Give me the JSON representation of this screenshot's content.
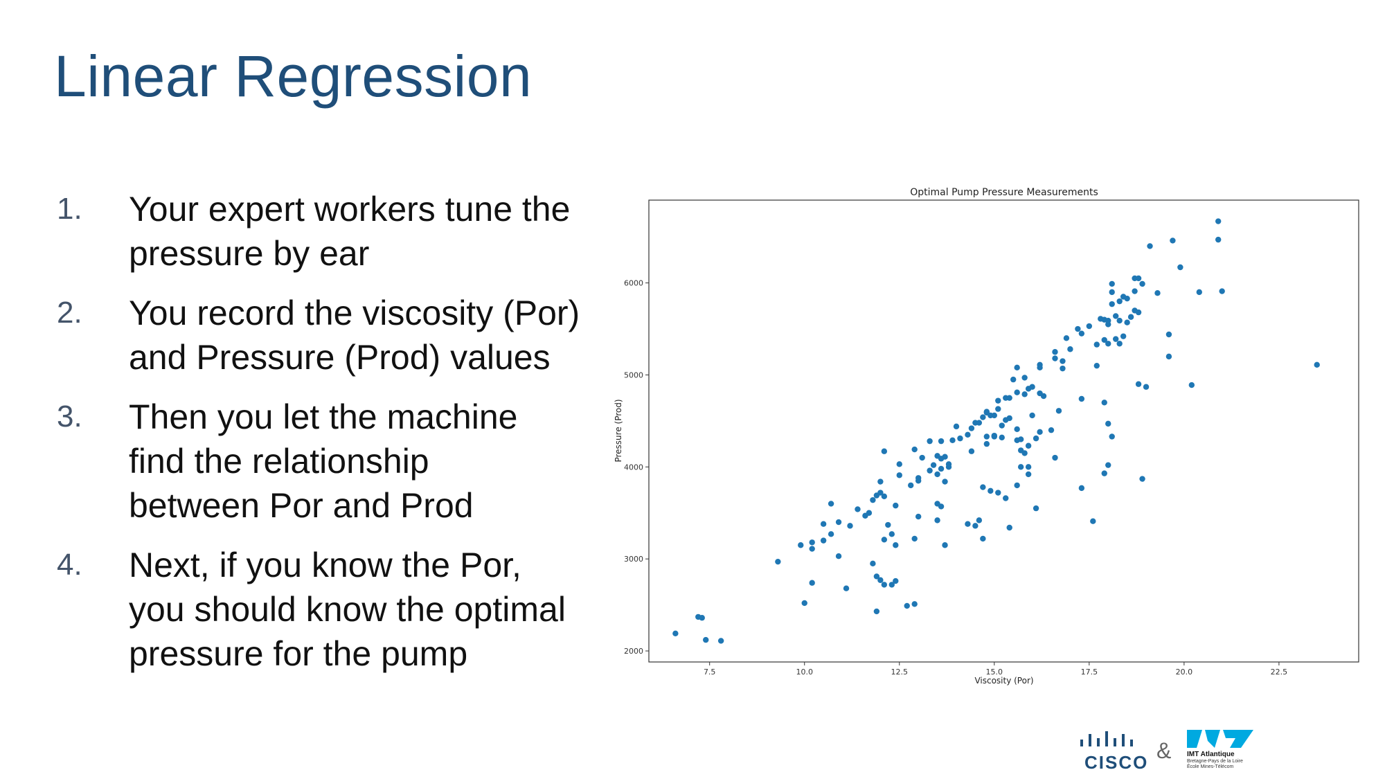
{
  "slide": {
    "title": "Linear Regression",
    "steps": [
      {
        "num": "1.",
        "lines": [
          "Your expert workers tune the",
          "pressure by ear"
        ]
      },
      {
        "num": "2.",
        "lines": [
          "You record the viscosity (Por)",
          "and Pressure (Prod) values"
        ]
      },
      {
        "num": "3.",
        "lines": [
          "Then you let the machine",
          "find the relationship",
          "between Por and Prod"
        ]
      },
      {
        "num": "4.",
        "lines": [
          "Next, if you know the Por,",
          "you should know the optimal",
          "pressure for the pump"
        ]
      }
    ]
  },
  "logos": {
    "cisco": "CISCO",
    "amp": "&",
    "imt_name": "IMT Atlantique",
    "imt_sub": [
      "Bretagne-Pays de la Loire",
      "École Mines-Télécom"
    ],
    "cisco_color": "#1f4e79",
    "imt_color": "#00a9e0"
  },
  "chart_data": {
    "type": "scatter",
    "title": "Optimal Pump Pressure Measurements",
    "xlabel": "Viscosity (Por)",
    "ylabel": "Pressure (Prod)",
    "xlim": [
      5.9,
      24.6
    ],
    "ylim": [
      1880,
      6900
    ],
    "xticks": [
      7.5,
      10.0,
      12.5,
      15.0,
      17.5,
      20.0,
      22.5
    ],
    "yticks": [
      2000,
      3000,
      4000,
      5000,
      6000
    ],
    "point_color": "#1f77b4",
    "grid": false,
    "points": [
      [
        6.6,
        2190
      ],
      [
        7.2,
        2370
      ],
      [
        7.3,
        2360
      ],
      [
        7.4,
        2120
      ],
      [
        7.8,
        2110
      ],
      [
        9.3,
        2970
      ],
      [
        9.9,
        3150
      ],
      [
        10.0,
        2520
      ],
      [
        10.2,
        3180
      ],
      [
        10.2,
        3110
      ],
      [
        10.2,
        2740
      ],
      [
        10.5,
        3200
      ],
      [
        10.5,
        3380
      ],
      [
        10.7,
        3600
      ],
      [
        10.7,
        3270
      ],
      [
        10.9,
        3400
      ],
      [
        10.9,
        3030
      ],
      [
        11.1,
        2680
      ],
      [
        11.2,
        3360
      ],
      [
        11.4,
        3540
      ],
      [
        11.6,
        3470
      ],
      [
        11.7,
        3500
      ],
      [
        11.8,
        3640
      ],
      [
        11.8,
        2950
      ],
      [
        11.9,
        2810
      ],
      [
        11.9,
        2430
      ],
      [
        11.9,
        3690
      ],
      [
        12.0,
        2770
      ],
      [
        12.0,
        3840
      ],
      [
        12.0,
        3720
      ],
      [
        12.1,
        3680
      ],
      [
        12.1,
        3210
      ],
      [
        12.1,
        2720
      ],
      [
        12.1,
        4170
      ],
      [
        12.2,
        3370
      ],
      [
        12.3,
        3270
      ],
      [
        12.3,
        2720
      ],
      [
        12.4,
        3580
      ],
      [
        12.4,
        3150
      ],
      [
        12.4,
        2760
      ],
      [
        12.5,
        3910
      ],
      [
        12.5,
        4030
      ],
      [
        12.7,
        2490
      ],
      [
        12.8,
        3800
      ],
      [
        12.9,
        3220
      ],
      [
        12.9,
        2510
      ],
      [
        12.9,
        4190
      ],
      [
        13.0,
        3850
      ],
      [
        13.0,
        3880
      ],
      [
        13.0,
        3460
      ],
      [
        13.1,
        4100
      ],
      [
        13.3,
        3960
      ],
      [
        13.3,
        4280
      ],
      [
        13.4,
        4020
      ],
      [
        13.5,
        4120
      ],
      [
        13.5,
        3920
      ],
      [
        13.5,
        3600
      ],
      [
        13.5,
        3420
      ],
      [
        13.6,
        4280
      ],
      [
        13.6,
        4090
      ],
      [
        13.6,
        3980
      ],
      [
        13.6,
        3570
      ],
      [
        13.7,
        4110
      ],
      [
        13.7,
        3840
      ],
      [
        13.7,
        3150
      ],
      [
        13.8,
        4030
      ],
      [
        13.8,
        4000
      ],
      [
        13.9,
        4290
      ],
      [
        14.0,
        4440
      ],
      [
        14.1,
        4310
      ],
      [
        14.3,
        4350
      ],
      [
        14.3,
        3380
      ],
      [
        14.4,
        4420
      ],
      [
        14.4,
        4170
      ],
      [
        14.5,
        4480
      ],
      [
        14.5,
        3360
      ],
      [
        14.6,
        4480
      ],
      [
        14.6,
        3420
      ],
      [
        14.7,
        4540
      ],
      [
        14.7,
        3780
      ],
      [
        14.7,
        3220
      ],
      [
        14.8,
        4600
      ],
      [
        14.8,
        4330
      ],
      [
        14.8,
        4590
      ],
      [
        14.8,
        4250
      ],
      [
        14.9,
        4560
      ],
      [
        14.9,
        3740
      ],
      [
        15.0,
        4330
      ],
      [
        15.0,
        4560
      ],
      [
        15.0,
        4340
      ],
      [
        15.1,
        4720
      ],
      [
        15.1,
        4630
      ],
      [
        15.1,
        3720
      ],
      [
        15.2,
        4450
      ],
      [
        15.2,
        4320
      ],
      [
        15.3,
        4750
      ],
      [
        15.3,
        4510
      ],
      [
        15.3,
        3660
      ],
      [
        15.4,
        4750
      ],
      [
        15.4,
        4530
      ],
      [
        15.4,
        3340
      ],
      [
        15.5,
        4950
      ],
      [
        15.6,
        4810
      ],
      [
        15.6,
        4410
      ],
      [
        15.6,
        4290
      ],
      [
        15.6,
        3800
      ],
      [
        15.6,
        5080
      ],
      [
        15.7,
        4300
      ],
      [
        15.7,
        4180
      ],
      [
        15.7,
        4000
      ],
      [
        15.8,
        4790
      ],
      [
        15.8,
        4150
      ],
      [
        15.8,
        4970
      ],
      [
        15.9,
        4850
      ],
      [
        15.9,
        4230
      ],
      [
        15.9,
        4000
      ],
      [
        15.9,
        3920
      ],
      [
        16.0,
        4870
      ],
      [
        16.0,
        4560
      ],
      [
        16.1,
        4310
      ],
      [
        16.1,
        3550
      ],
      [
        16.2,
        5110
      ],
      [
        16.2,
        5080
      ],
      [
        16.2,
        4800
      ],
      [
        16.2,
        4380
      ],
      [
        16.3,
        4770
      ],
      [
        16.5,
        4400
      ],
      [
        16.6,
        5250
      ],
      [
        16.6,
        5180
      ],
      [
        16.6,
        4100
      ],
      [
        16.7,
        4610
      ],
      [
        16.8,
        5150
      ],
      [
        16.8,
        5070
      ],
      [
        16.9,
        5400
      ],
      [
        17.0,
        5280
      ],
      [
        17.2,
        5500
      ],
      [
        17.3,
        5450
      ],
      [
        17.3,
        4740
      ],
      [
        17.3,
        3770
      ],
      [
        17.5,
        5530
      ],
      [
        17.6,
        3410
      ],
      [
        17.7,
        5330
      ],
      [
        17.7,
        5100
      ],
      [
        17.8,
        5610
      ],
      [
        17.9,
        5380
      ],
      [
        17.9,
        5600
      ],
      [
        17.9,
        4700
      ],
      [
        17.9,
        3930
      ],
      [
        18.0,
        5550
      ],
      [
        18.0,
        5590
      ],
      [
        18.0,
        5340
      ],
      [
        18.0,
        4470
      ],
      [
        18.0,
        4020
      ],
      [
        18.1,
        5770
      ],
      [
        18.1,
        5990
      ],
      [
        18.1,
        5900
      ],
      [
        18.1,
        4330
      ],
      [
        18.2,
        5390
      ],
      [
        18.2,
        5640
      ],
      [
        18.3,
        5590
      ],
      [
        18.3,
        5340
      ],
      [
        18.3,
        5800
      ],
      [
        18.4,
        5850
      ],
      [
        18.4,
        5420
      ],
      [
        18.5,
        5830
      ],
      [
        18.5,
        5570
      ],
      [
        18.6,
        5630
      ],
      [
        18.7,
        5700
      ],
      [
        18.7,
        6050
      ],
      [
        18.7,
        5910
      ],
      [
        18.8,
        6050
      ],
      [
        18.8,
        5680
      ],
      [
        18.8,
        4900
      ],
      [
        18.9,
        5990
      ],
      [
        18.9,
        3870
      ],
      [
        19.0,
        4870
      ],
      [
        19.1,
        6400
      ],
      [
        19.3,
        5890
      ],
      [
        19.6,
        5440
      ],
      [
        19.6,
        5200
      ],
      [
        19.7,
        6460
      ],
      [
        19.9,
        6170
      ],
      [
        20.2,
        4890
      ],
      [
        20.4,
        5900
      ],
      [
        20.9,
        6670
      ],
      [
        20.9,
        6470
      ],
      [
        21.0,
        5910
      ],
      [
        23.5,
        5110
      ]
    ]
  }
}
